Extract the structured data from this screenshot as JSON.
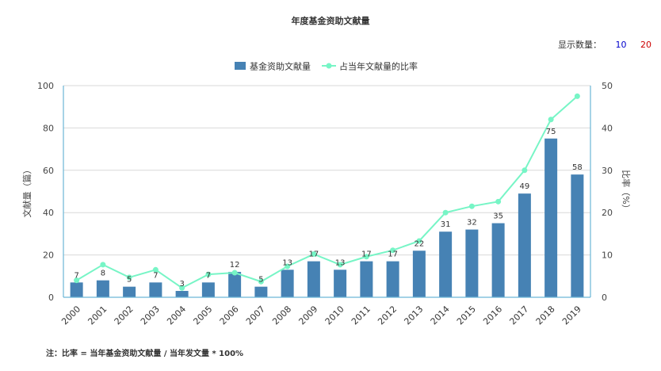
{
  "header": {
    "title": "年度基金资助文献量",
    "display_count_label": "显示数量：",
    "display_count_options": [
      "10",
      "20"
    ]
  },
  "footnote": "注：比率 = 当年基金资助文献量 / 当年发文量 * 100%",
  "colors": {
    "bar": "#4682b4",
    "line": "#77f5c6",
    "axis": "#6cb6d6",
    "grid": "#d9d9d9",
    "option_10": "#0000cc",
    "option_20": "#cc0000"
  },
  "chart_data": {
    "type": "bar+line",
    "title": "年度基金资助文献量",
    "categories": [
      "2000",
      "2001",
      "2002",
      "2003",
      "2004",
      "2005",
      "2006",
      "2007",
      "2008",
      "2009",
      "2010",
      "2011",
      "2012",
      "2013",
      "2014",
      "2015",
      "2016",
      "2017",
      "2018",
      "2019"
    ],
    "series": [
      {
        "name": "基金资助文献量",
        "type": "bar",
        "axis": "left",
        "values": [
          7,
          8,
          5,
          7,
          3,
          7,
          12,
          5,
          13,
          17,
          13,
          17,
          17,
          22,
          31,
          32,
          35,
          49,
          75,
          58
        ]
      },
      {
        "name": "占当年文献量的比率",
        "type": "line",
        "axis": "right",
        "values": [
          4,
          7.7,
          4.7,
          6.5,
          2.2,
          5.4,
          5.8,
          3.7,
          7.3,
          10.2,
          7.7,
          9.6,
          11.1,
          13.3,
          20,
          21.5,
          22.6,
          30,
          42,
          47.5
        ]
      }
    ],
    "ylabel_left": "文献量（篇）",
    "ylabel_right": "比率（%）",
    "ylim_left": [
      0,
      100
    ],
    "ylim_right": [
      0,
      50
    ],
    "yticks_left": [
      0,
      20,
      40,
      60,
      80,
      100
    ],
    "yticks_right": [
      0,
      10,
      20,
      30,
      40,
      50
    ],
    "grid": true,
    "legend_position": "top-center"
  }
}
